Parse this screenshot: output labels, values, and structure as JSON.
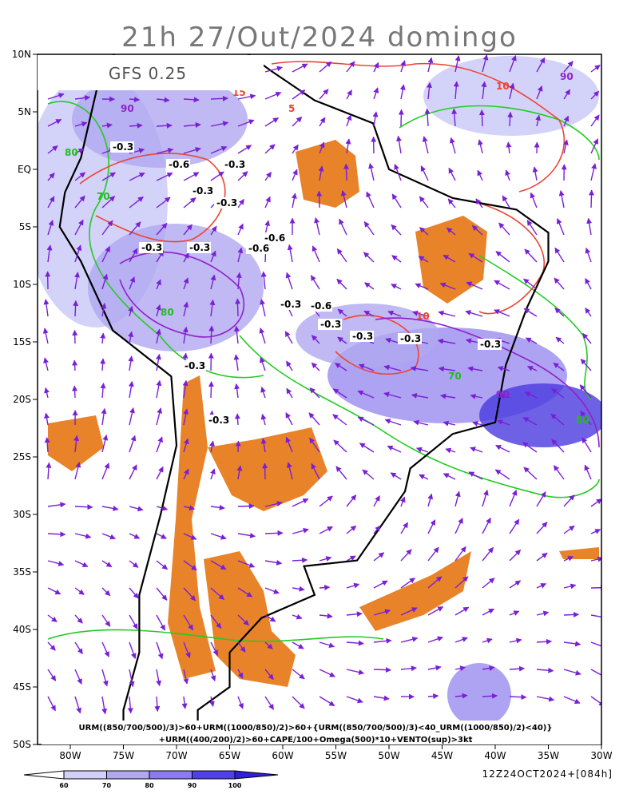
{
  "title": "21h 27/Out/2024 domingo",
  "model": "GFS 0.25",
  "lat_labels": [
    "10N",
    "5N",
    "EQ",
    "5S",
    "10S",
    "15S",
    "20S",
    "25S",
    "30S",
    "35S",
    "40S",
    "45S",
    "50S"
  ],
  "lon_labels": [
    "80W",
    "75W",
    "70W",
    "65W",
    "60W",
    "55W",
    "50W",
    "45W",
    "40W",
    "35W",
    "30W"
  ],
  "caption": [
    "URM((850/700/500)/3)>60+URM((1000/850)/2)>60+{URM((850/700/500)/3)<40_URM((1000/850)/2)<40)}",
    "+URM((400/200)/2)>60+CAPE/100+Omega(500)*10+VENTO(sup)>3kt"
  ],
  "colorbar": [
    "60",
    "70",
    "80",
    "90",
    "100"
  ],
  "run": "12Z24OCT2024+[084h]",
  "contour_labels": [
    "-0.3",
    "-0.6",
    "-0.3",
    "-0.3",
    "-0.3",
    "-0.6",
    "-0.3",
    "-0.3",
    "-0.6",
    "-0.3",
    "-0.6",
    "-0.3",
    "-0.3",
    "-0.3",
    "-0.3",
    "-0.3",
    "-0.3",
    "80",
    "90",
    "80",
    "70",
    "90",
    "10",
    "15",
    "5",
    "10",
    "80",
    "70",
    "90",
    "80"
  ]
}
